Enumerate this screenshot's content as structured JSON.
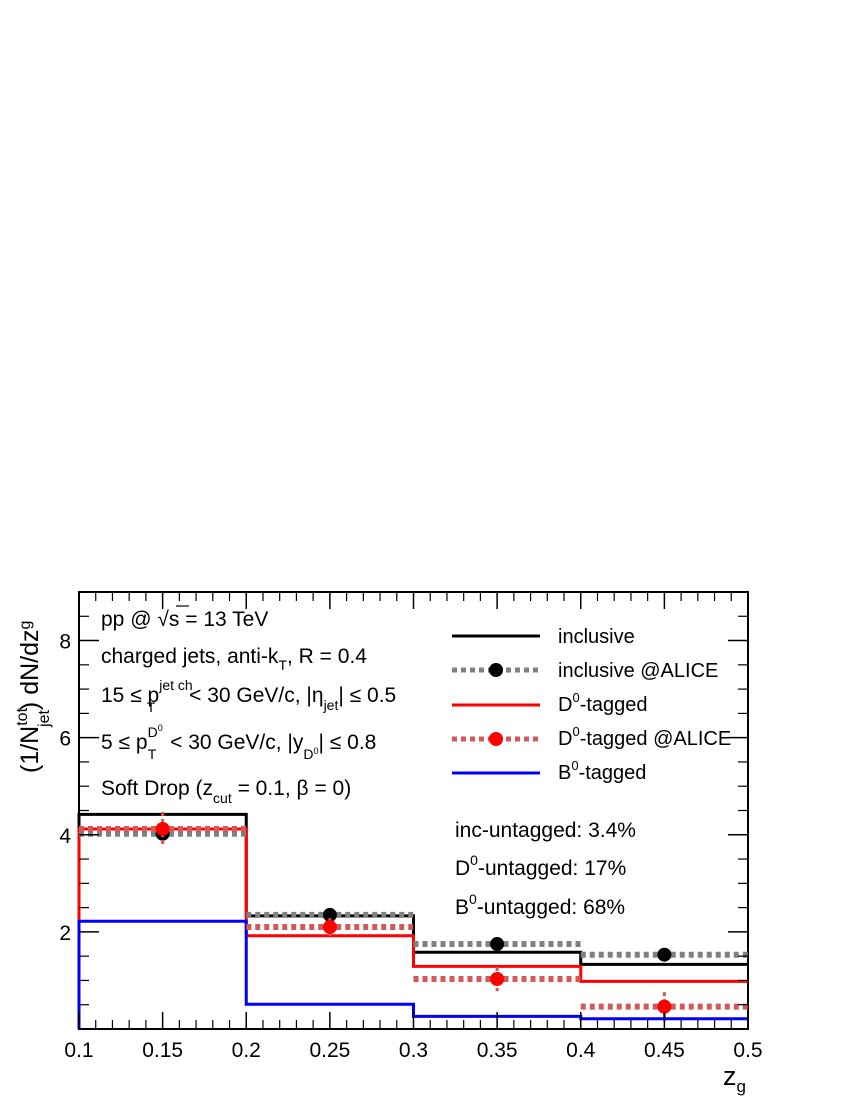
{
  "chart_data": {
    "type": "line",
    "x_edges": [
      0.1,
      0.2,
      0.3,
      0.4,
      0.5
    ],
    "x_centers": [
      0.15,
      0.25,
      0.35,
      0.45
    ],
    "xlim": [
      0.1,
      0.5
    ],
    "ylim": [
      0,
      9
    ],
    "x_ticks": [
      "0.1",
      "0.15",
      "0.2",
      "0.25",
      "0.3",
      "0.35",
      "0.4",
      "0.45",
      "0.5"
    ],
    "y_ticks": [
      "2",
      "4",
      "6",
      "8"
    ],
    "xlabel": {
      "main": "z",
      "sub": "g"
    },
    "ylabel": {
      "a": "(1/N",
      "sup": "tot",
      "sub": "jet",
      "b": ") dN/dz",
      "tail_sub": "g"
    },
    "series": [
      {
        "name": "inclusive",
        "style": "hist",
        "color": "#000000",
        "values": [
          4.42,
          2.33,
          1.58,
          1.33
        ]
      },
      {
        "name": "inclusive @ALICE",
        "style": "hist-points",
        "color": "#808080",
        "marker": "#000000",
        "values": [
          4.02,
          2.35,
          1.75,
          1.53
        ],
        "errors": [
          0.12,
          0.07,
          0.05,
          0.05
        ]
      },
      {
        "name": "D0-tagged",
        "style": "hist",
        "color": "#ff0000",
        "values": [
          4.12,
          1.92,
          1.29,
          0.98
        ]
      },
      {
        "name": "D0-tagged @ALICE",
        "style": "hist-points",
        "color": "#d05a5a",
        "marker": "#ff0000",
        "values": [
          4.12,
          2.1,
          1.03,
          0.46
        ],
        "errors": [
          0.35,
          0.18,
          0.25,
          0.3
        ]
      },
      {
        "name": "B0-tagged",
        "style": "hist",
        "color": "#0000ff",
        "values": [
          2.22,
          0.51,
          0.26,
          0.21
        ]
      }
    ],
    "legend_position": "top-right"
  },
  "labels": {
    "line1_a": "pp @ ",
    "line1_b": "s",
    "line1_c": " = 13 TeV",
    "line2_a": "charged jets, anti-k",
    "line2_sub": "T",
    "line2_b": ", R = 0.4",
    "line3_a": "15 ≤ p",
    "line3_sup": "jet ch",
    "line3_sub": "T",
    "line3_b": " < 30 GeV/c, |η",
    "line3_sub2": "jet",
    "line3_c": "| ≤ 0.5",
    "line4_a": "5 ≤ p",
    "line4_sup": "D",
    "line4_supsup": "0",
    "line4_sub": "T",
    "line4_b": " < 30 GeV/c, |y",
    "line4_sub2": "D",
    "line4_sub2sup": "0",
    "line4_c": "| ≤ 0.8",
    "line5_a": "Soft Drop (z",
    "line5_sub": "cut",
    "line5_b": " = 0.1, β = 0)"
  },
  "legend": {
    "inclusive": "inclusive",
    "inclusive_alice": "inclusive @ALICE",
    "d0_a": "D",
    "d0_sup": "0",
    "d0_b": "-tagged",
    "d0_alice_b": "-tagged @ALICE",
    "b0_a": "B",
    "b0_sup": "0",
    "b0_b": "-tagged"
  },
  "untagged": {
    "inc": "inc-untagged: 3.4%",
    "d0_a": "D",
    "d0_sup": "0",
    "d0_b": "-untagged: 17%",
    "b0_a": "B",
    "b0_sup": "0",
    "b0_b": "-untagged: 68%"
  }
}
